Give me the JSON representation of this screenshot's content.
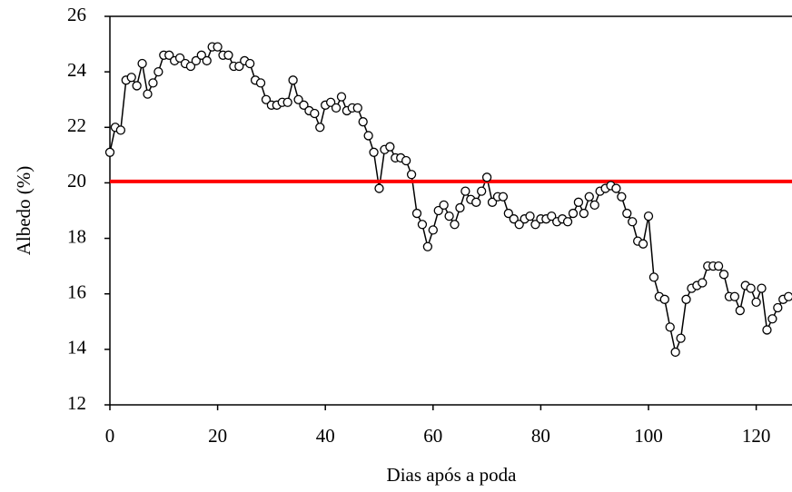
{
  "chart_data": {
    "type": "line",
    "xlabel": "Dias após a poda",
    "ylabel": "Albedo (%)",
    "x": [
      0,
      1,
      2,
      3,
      4,
      5,
      6,
      7,
      8,
      9,
      10,
      11,
      12,
      13,
      14,
      15,
      16,
      17,
      18,
      19,
      20,
      21,
      22,
      23,
      24,
      25,
      26,
      27,
      28,
      29,
      30,
      31,
      32,
      33,
      34,
      35,
      36,
      37,
      38,
      39,
      40,
      41,
      42,
      43,
      44,
      45,
      46,
      47,
      48,
      49,
      50,
      51,
      52,
      53,
      54,
      55,
      56,
      57,
      58,
      59,
      60,
      61,
      62,
      63,
      64,
      65,
      66,
      67,
      68,
      69,
      70,
      71,
      72,
      73,
      74,
      75,
      76,
      77,
      78,
      79,
      80,
      81,
      82,
      83,
      84,
      85,
      86,
      87,
      88,
      89,
      90,
      91,
      92,
      93,
      94,
      95,
      96,
      97,
      98,
      99,
      100,
      101,
      102,
      103,
      104,
      105,
      106,
      107,
      108,
      109,
      110,
      111,
      112,
      113,
      114,
      115,
      116,
      117,
      118,
      119,
      120,
      121,
      122,
      123,
      124,
      125,
      126
    ],
    "series": [
      {
        "name": "Albedo",
        "color": "#000000",
        "marker_fill": "#ffffff",
        "values": [
          21.1,
          22.0,
          21.9,
          23.7,
          23.8,
          23.5,
          24.3,
          23.2,
          23.6,
          24.0,
          24.6,
          24.6,
          24.4,
          24.5,
          24.3,
          24.2,
          24.4,
          24.6,
          24.4,
          24.9,
          24.9,
          24.6,
          24.6,
          24.2,
          24.2,
          24.4,
          24.3,
          23.7,
          23.6,
          23.0,
          22.8,
          22.8,
          22.9,
          22.9,
          23.7,
          23.0,
          22.8,
          22.6,
          22.5,
          22.0,
          22.8,
          22.9,
          22.7,
          23.1,
          22.6,
          22.7,
          22.7,
          22.2,
          21.7,
          21.1,
          19.8,
          21.2,
          21.3,
          20.9,
          20.9,
          20.8,
          20.3,
          18.9,
          18.5,
          17.7,
          18.3,
          19.0,
          19.2,
          18.8,
          18.5,
          19.1,
          19.7,
          19.4,
          19.3,
          19.7,
          20.2,
          19.3,
          19.5,
          19.5,
          18.9,
          18.7,
          18.5,
          18.7,
          18.8,
          18.5,
          18.7,
          18.7,
          18.8,
          18.6,
          18.7,
          18.6,
          18.9,
          19.3,
          18.9,
          19.5,
          19.2,
          19.7,
          19.8,
          19.9,
          19.8,
          19.5,
          18.9,
          18.6,
          17.9,
          17.8,
          18.8,
          16.6,
          15.9,
          15.8,
          14.8,
          13.9,
          14.4,
          15.8,
          16.2,
          16.3,
          16.4,
          17.0,
          17.0,
          17.0,
          16.7,
          15.9,
          15.9,
          15.4,
          16.3,
          16.2,
          15.7,
          16.2,
          14.7,
          15.1,
          15.5,
          15.8,
          15.9
        ]
      }
    ],
    "hline": 20.05,
    "hline_color": "#ff0000",
    "xlim": [
      0,
      126.6
    ],
    "xticks": [
      0,
      20,
      40,
      60,
      80,
      100,
      120
    ],
    "ylim": [
      12,
      26
    ],
    "yticks": [
      12,
      14,
      16,
      18,
      20,
      22,
      24,
      26
    ]
  }
}
